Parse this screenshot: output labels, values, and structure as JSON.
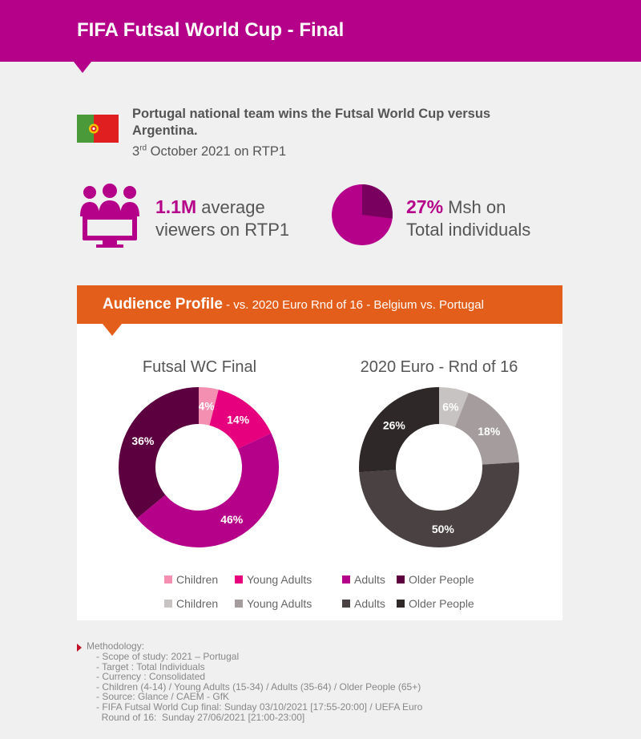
{
  "header": {
    "title": "FIFA Futsal World Cup - Final"
  },
  "news": {
    "headline": "Portugal national team wins the Futsal World Cup versus Argentina.",
    "date_day": "3",
    "date_suffix": "rd",
    "date_rest": " October 2021 on RTP1"
  },
  "stats": {
    "viewers_value": "1.1M",
    "viewers_text1": " average",
    "viewers_text2": "viewers on RTP1",
    "share_value": "27%",
    "share_text1": " Msh on",
    "share_text2": "Total individuals",
    "share_fraction": 0.27
  },
  "panel": {
    "title": "Audience Profile",
    "subtitle": " - vs. 2020 Euro Rnd of 16 - Belgium vs. Portugal"
  },
  "colors": {
    "header": "#b5008a",
    "panel_header": "#e35e1a",
    "pie_icon_main": "#b5008a",
    "pie_icon_slice": "#7a0060"
  },
  "chart_data": [
    {
      "type": "pie",
      "title": "Futsal WC Final",
      "categories": [
        "Children",
        "Young Adults",
        "Adults",
        "Older People"
      ],
      "values": [
        4,
        14,
        46,
        36
      ],
      "labels": [
        "4%",
        "14%",
        "46%",
        "36%"
      ],
      "colors": [
        "#f48fb1",
        "#e6007e",
        "#b5008a",
        "#5c0040"
      ]
    },
    {
      "type": "pie",
      "title": "2020 Euro - Rnd of 16",
      "categories": [
        "Children",
        "Young Adults",
        "Adults",
        "Older People"
      ],
      "values": [
        6,
        18,
        50,
        26
      ],
      "labels": [
        "6%",
        "18%",
        "50%",
        "26%"
      ],
      "colors": [
        "#c8c3c3",
        "#a59d9d",
        "#4a4242",
        "#2e2828"
      ]
    }
  ],
  "methodology": {
    "title": "Methodology:",
    "items": [
      "- Scope of study: 2021 – Portugal",
      "- Target : Total Individuals",
      "- Currency : Consolidated",
      "- Children (4-14) / Young Adults (15-34) / Adults (35-64) / Older People (65+)",
      "- Source: Glance / CAEM - GfK",
      "- FIFA Futsal World Cup final: Sunday 03/10/2021 [17:55-20:00] / UEFA Euro",
      "  Round of 16:  Sunday 27/06/2021 [21:00-23:00]"
    ]
  }
}
